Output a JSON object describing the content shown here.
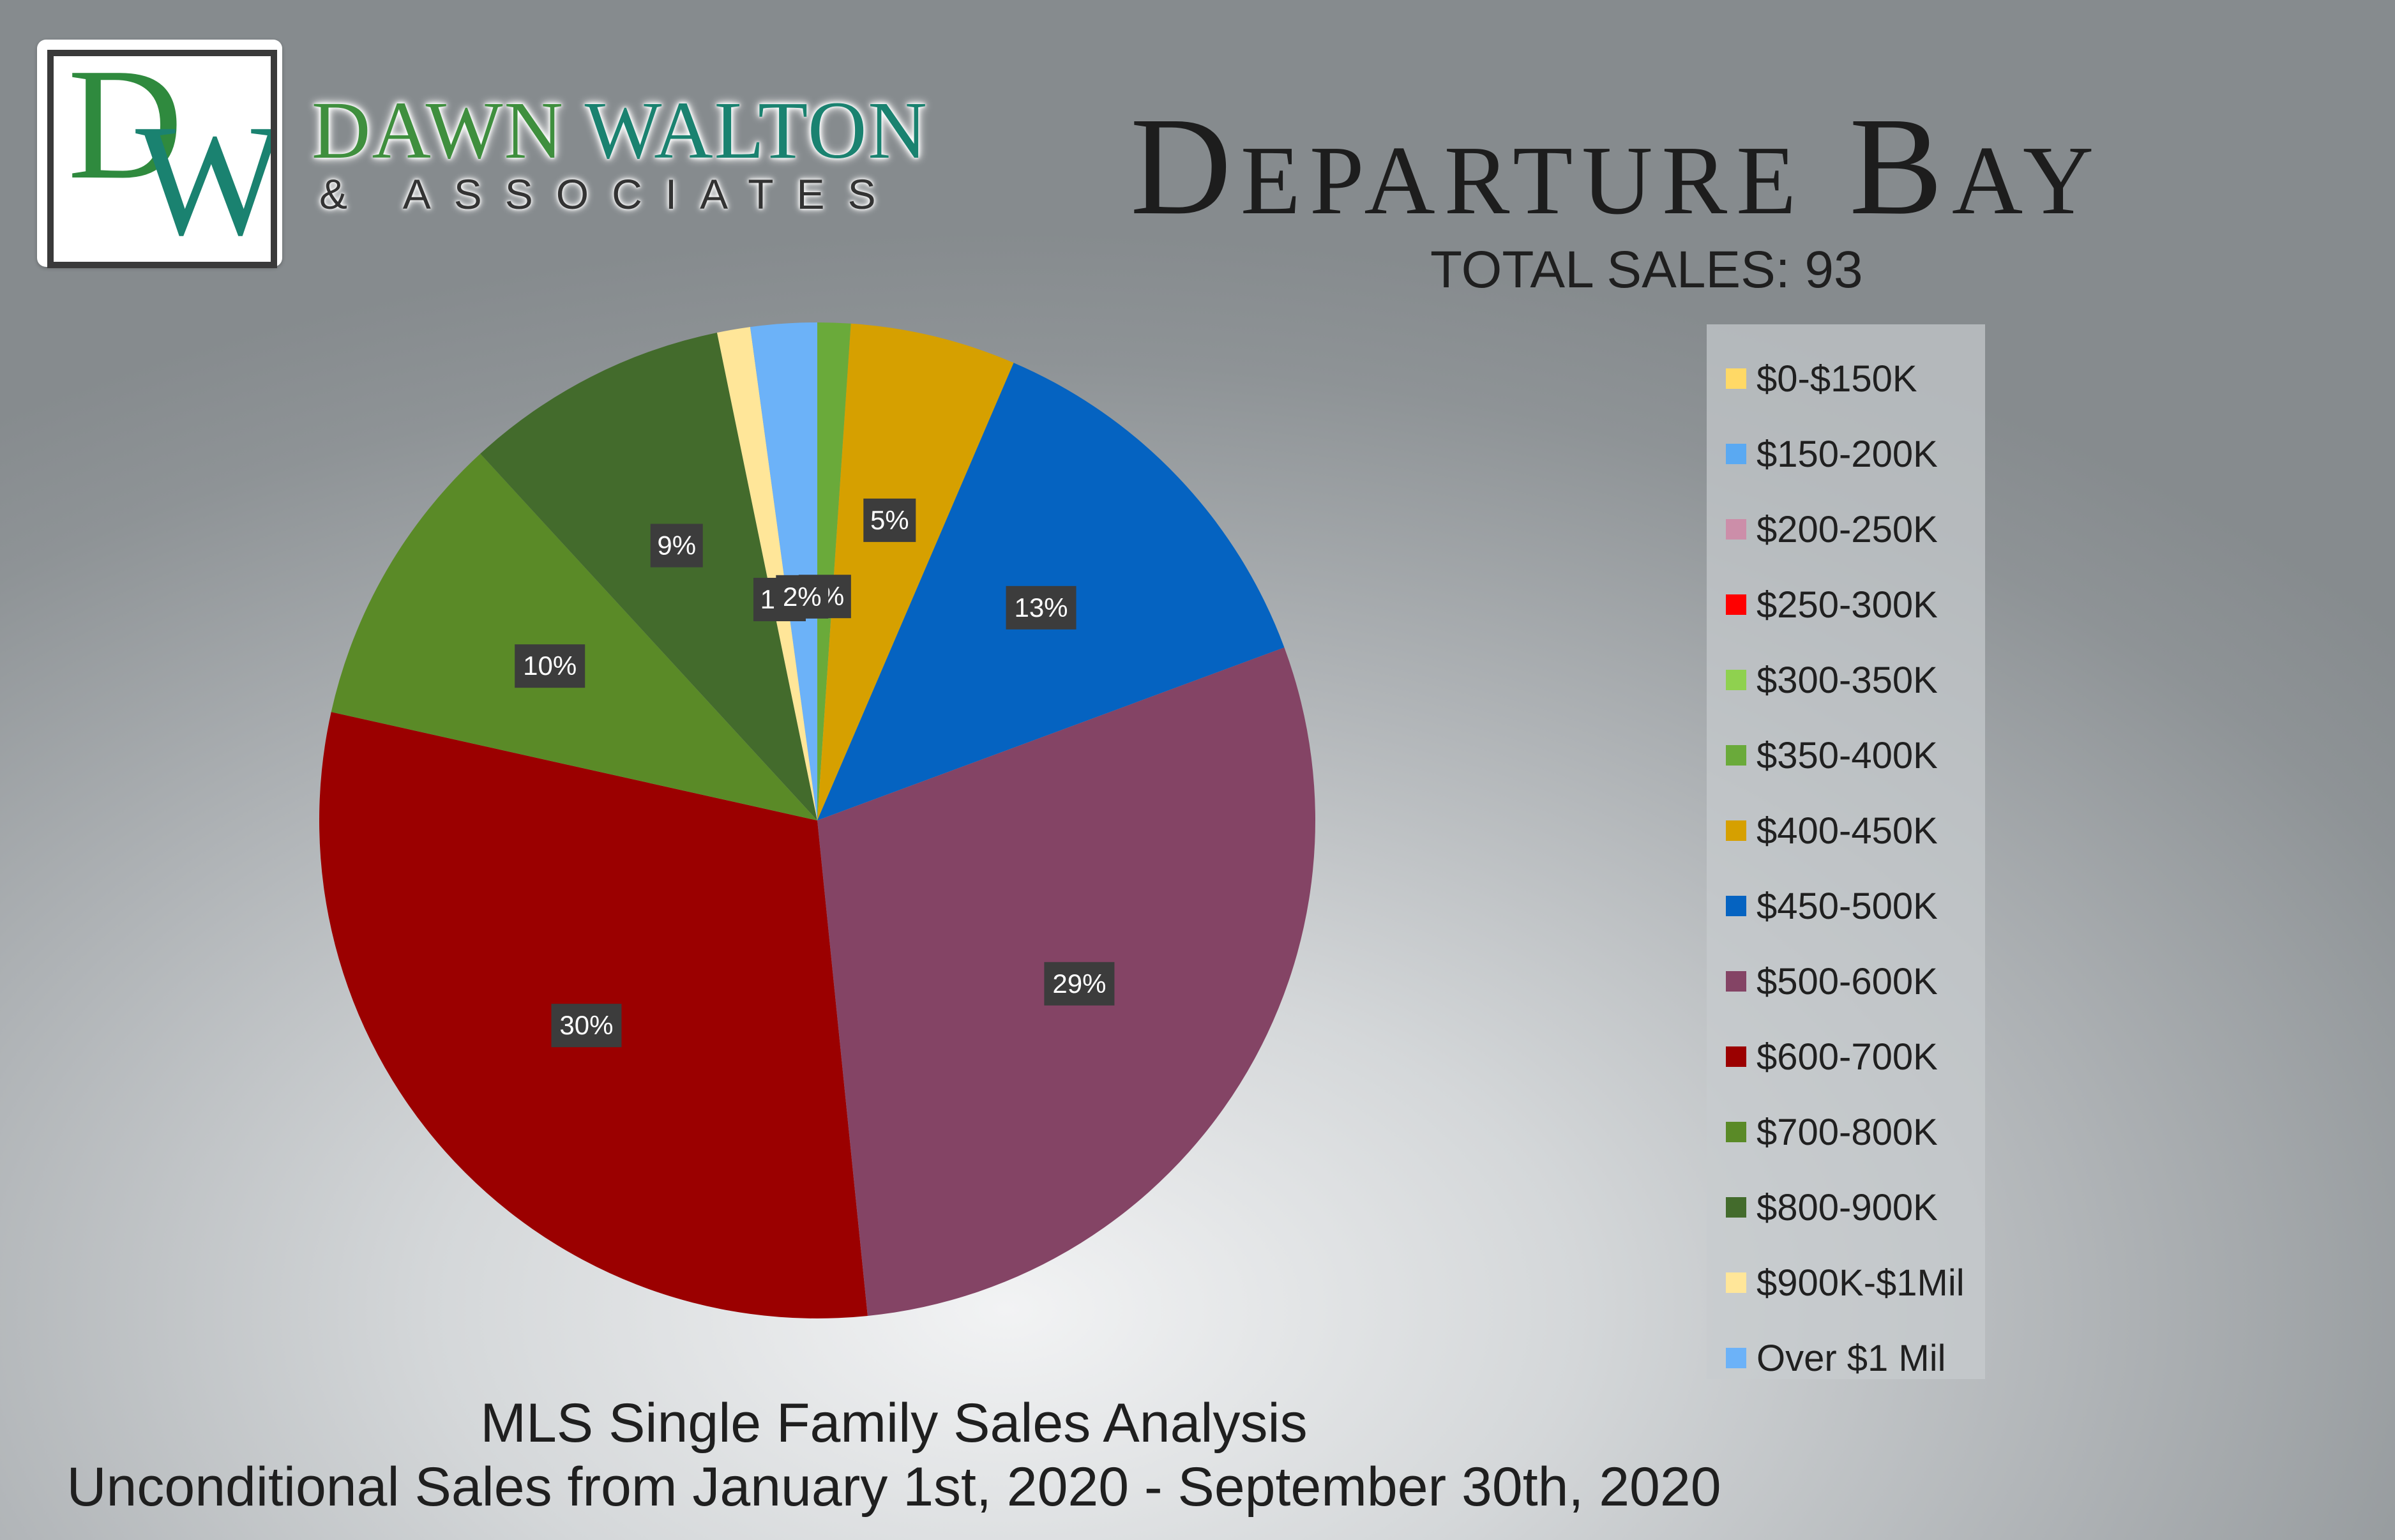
{
  "brand": {
    "logo_letter_d": "D",
    "logo_letter_w": "W",
    "name_first": "DAWN",
    "name_last": "WALTON",
    "sub": "& ASSOCIATES"
  },
  "header": {
    "title": "Departure Bay",
    "subtitle": "TOTAL SALES: 93"
  },
  "footer": {
    "line1": "MLS Single Family Sales Analysis",
    "line2": "Unconditional Sales from January 1st, 2020 - September 30th, 2020"
  },
  "chart_data": {
    "type": "pie",
    "total": 93,
    "legend_position": "right",
    "categories": [
      "$0-$150K",
      "$150-200K",
      "$200-250K",
      "$250-300K",
      "$300-350K",
      "$350-400K",
      "$400-450K",
      "$450-500K",
      "$500-600K",
      "$600-700K",
      "$700-800K",
      "$800-900K",
      "$900K-$1Mil",
      "Over $1 Mil"
    ],
    "values": [
      0,
      0,
      0,
      0,
      0,
      1,
      5,
      12,
      27,
      28,
      9,
      8,
      1,
      2
    ],
    "data_labels": [
      "",
      "",
      "",
      "",
      "",
      "1%",
      "5%",
      "13%",
      "29%",
      "30%",
      "10%",
      "9%",
      "1%",
      "2%"
    ],
    "colors": [
      "#ffd966",
      "#5aa9f2",
      "#cc8ea9",
      "#ff0000",
      "#8fd14f",
      "#6aaa3a",
      "#d6a000",
      "#0563c1",
      "#844465",
      "#9b0000",
      "#5a8a27",
      "#436b2c",
      "#ffe699",
      "#6cb2f8"
    ]
  }
}
